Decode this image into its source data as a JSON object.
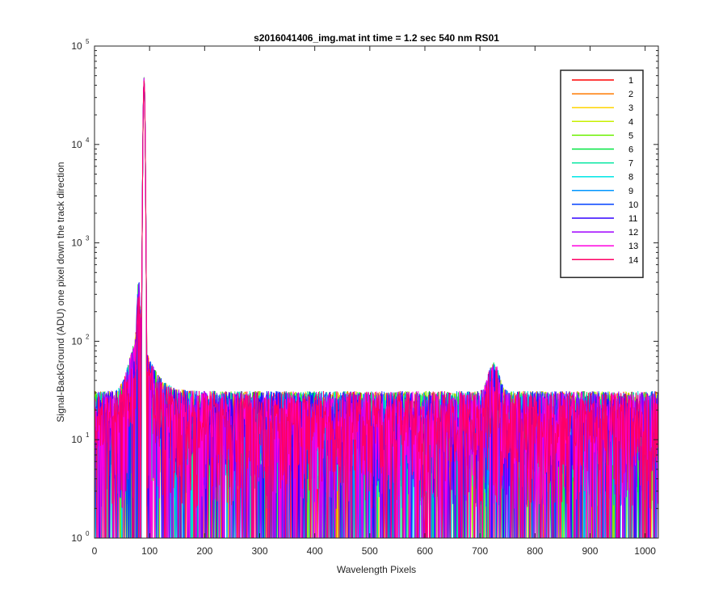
{
  "chart_data": {
    "type": "line",
    "title": "s2016041406_img.mat int time = 1.2 sec  540 nm RS01",
    "xlabel": "Wavelength Pixels",
    "ylabel": "Signal-BackGround (ADU) one pixel down the track direction",
    "xlim": [
      0,
      1024
    ],
    "ylim": [
      1,
      100000
    ],
    "y_scale": "log",
    "grid": false,
    "legend_location": "top-right",
    "x_ticks": [
      "0",
      "100",
      "200",
      "300",
      "400",
      "500",
      "600",
      "700",
      "800",
      "900",
      "1000"
    ],
    "y_tick_mantissa": "10",
    "y_tick_exponents": [
      "0",
      "1",
      "2",
      "3",
      "4",
      "5"
    ],
    "series": [
      {
        "name": "1",
        "color": "#ff0000"
      },
      {
        "name": "2",
        "color": "#ff7a00"
      },
      {
        "name": "3",
        "color": "#ffd400"
      },
      {
        "name": "4",
        "color": "#c8f000"
      },
      {
        "name": "5",
        "color": "#6cf000"
      },
      {
        "name": "6",
        "color": "#00e640"
      },
      {
        "name": "7",
        "color": "#00e6a0"
      },
      {
        "name": "8",
        "color": "#00e6e6"
      },
      {
        "name": "9",
        "color": "#0096ff"
      },
      {
        "name": "10",
        "color": "#0040ff"
      },
      {
        "name": "11",
        "color": "#3200ff"
      },
      {
        "name": "12",
        "color": "#a000ff"
      },
      {
        "name": "13",
        "color": "#ff00e0"
      },
      {
        "name": "14",
        "color": "#ff0064"
      }
    ],
    "profile": {
      "baseline": 20,
      "noise_range": [
        1,
        50
      ],
      "peak": {
        "x": 90,
        "y": 48000
      },
      "shoulder": {
        "x": 80,
        "y": 250
      },
      "bump": {
        "x": 725,
        "y": 55
      }
    }
  }
}
